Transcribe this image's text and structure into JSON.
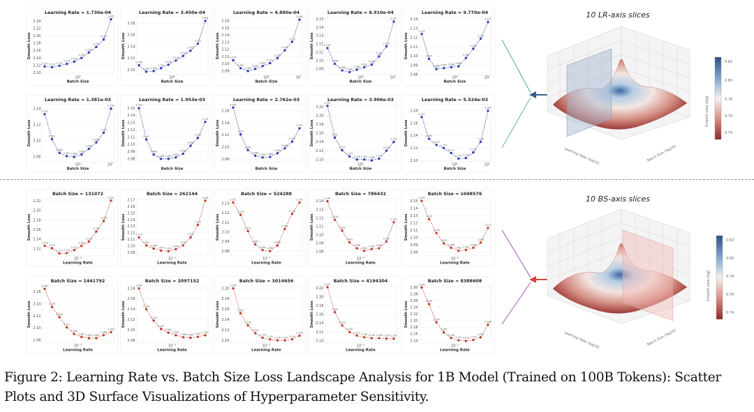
{
  "lr_section": {
    "title": "10 LR-axis slices",
    "xlabel": "Batch Size",
    "ylabel": "Smooth Loss",
    "color": "#2f3bb5"
  },
  "bs_section": {
    "title": "10 BS-axis slices",
    "xlabel": "Learning Rate",
    "ylabel": "Smooth Loss",
    "color": "#c43a2a"
  },
  "surface": {
    "axis_lr": "Learning Rate (log10)",
    "axis_bs": "Batch Size (log10)",
    "colorbar_label": "Smooth Loss (log)",
    "colorbar_ticks": [
      "0.82",
      "0.80",
      "0.78",
      "0.76",
      "0.74"
    ],
    "colormap": [
      "#2f4f88",
      "#8fb3d6",
      "#f5f0ee",
      "#d79083",
      "#8f2a2a"
    ],
    "lr_arrow_color": "#3a5b8c",
    "bs_arrow_color": "#d2473a"
  },
  "divider_style": "dashed",
  "caption": {
    "line1": "Figure 2: Learning Rate vs. Batch Size Loss Landscape Analysis for 1B Model (Trained on 100B Tokens): Scatter",
    "line2": "Plots and 3D Surface Visualizations of Hyperparameter Sensitivity."
  },
  "chart_data": [
    {
      "type": "line",
      "group": "lr",
      "title": "Learning Rate = 1.730e-04",
      "xlabel": "Batch Size",
      "ylabel": "Smooth Loss",
      "x_scale": "log",
      "y_ticks": [
        "2.10",
        "2.12",
        "2.14",
        "2.16",
        "2.18",
        "2.20",
        "2.22",
        "2.24"
      ],
      "x_ticks": [
        "10⁶"
      ],
      "ylim": [
        2.095,
        2.25
      ],
      "values": [
        2.117,
        2.115,
        2.119,
        2.124,
        2.13,
        2.14,
        2.155,
        2.17,
        2.19,
        2.245
      ]
    },
    {
      "type": "line",
      "group": "lr",
      "title": "Learning Rate = 3.450e-04",
      "xlabel": "Batch Size",
      "ylabel": "Smooth Loss",
      "x_scale": "log",
      "y_ticks": [
        "2.10",
        "2.12",
        "2.14",
        "2.16",
        "2.18"
      ],
      "x_ticks": [
        "10⁶"
      ],
      "ylim": [
        2.092,
        2.19
      ],
      "values": [
        2.108,
        2.097,
        2.098,
        2.103,
        2.109,
        2.116,
        2.124,
        2.133,
        2.145,
        2.184
      ]
    },
    {
      "type": "line",
      "group": "lr",
      "title": "Learning Rate = 4.880e-04",
      "xlabel": "Batch Size",
      "ylabel": "Smooth Loss",
      "x_scale": "log",
      "y_ticks": [
        "2.09",
        "2.10",
        "2.11",
        "2.12",
        "2.13",
        "2.14",
        "2.15",
        "2.16"
      ],
      "x_ticks": [
        "10⁶",
        "10⁷"
      ],
      "ylim": [
        2.085,
        2.165
      ],
      "values": [
        2.105,
        2.094,
        2.09,
        2.093,
        2.097,
        2.101,
        2.108,
        2.119,
        2.131,
        2.162
      ]
    },
    {
      "type": "line",
      "group": "lr",
      "title": "Learning Rate = 6.910e-04",
      "xlabel": "Batch Size",
      "ylabel": "Smooth Loss",
      "x_scale": "log",
      "y_ticks": [
        "2.09",
        "2.10",
        "2.11",
        "2.12",
        "2.13",
        "2.14",
        "2.15"
      ],
      "x_ticks": [
        "10⁶",
        "10⁷"
      ],
      "ylim": [
        2.083,
        2.152
      ],
      "values": [
        2.115,
        2.096,
        2.088,
        2.086,
        2.089,
        2.092,
        2.095,
        2.105,
        2.117,
        2.147
      ]
    },
    {
      "type": "line",
      "group": "lr",
      "title": "Learning Rate = 9.770e-04",
      "xlabel": "Batch Size",
      "ylabel": "Smooth Loss",
      "x_scale": "log",
      "y_ticks": [
        "2.08",
        "2.09",
        "2.10",
        "2.11",
        "2.12",
        "2.13",
        "2.14"
      ],
      "x_ticks": [
        "10⁶",
        "10⁷"
      ],
      "ylim": [
        2.08,
        2.142
      ],
      "values": [
        2.124,
        2.097,
        2.086,
        2.087,
        2.088,
        2.089,
        2.098,
        2.108,
        2.119,
        2.137
      ]
    },
    {
      "type": "line",
      "group": "lr",
      "title": "Learning Rate = 1.381e-03",
      "xlabel": "Batch Size",
      "ylabel": "Smooth Loss",
      "x_scale": "log",
      "y_ticks": [
        "2.08",
        "2.10",
        "2.12",
        "2.14"
      ],
      "x_ticks": [
        "10⁶",
        "10⁷"
      ],
      "ylim": [
        2.074,
        2.145
      ],
      "values": [
        2.133,
        2.102,
        2.085,
        2.081,
        2.08,
        2.083,
        2.09,
        2.098,
        2.11,
        2.14
      ]
    },
    {
      "type": "line",
      "group": "lr",
      "title": "Learning Rate = 1.953e-03",
      "xlabel": "Batch Size",
      "ylabel": "Smooth Loss",
      "x_scale": "log",
      "y_ticks": [
        "2.08",
        "2.09",
        "2.10",
        "2.11",
        "2.12",
        "2.13",
        "2.14",
        "2.15"
      ],
      "x_ticks": [],
      "ylim": [
        2.076,
        2.155
      ],
      "values": [
        2.15,
        2.107,
        2.086,
        2.08,
        2.08,
        2.082,
        2.087,
        2.098,
        2.109,
        2.131
      ]
    },
    {
      "type": "line",
      "group": "lr",
      "title": "Learning Rate = 2.762e-03",
      "xlabel": "Batch Size",
      "ylabel": "Smooth Loss",
      "x_scale": "log",
      "y_ticks": [
        "2.08",
        "2.10",
        "2.12",
        "2.14",
        "2.16"
      ],
      "x_ticks": [],
      "ylim": [
        2.076,
        2.17
      ],
      "values": [
        2.165,
        2.121,
        2.095,
        2.086,
        2.083,
        2.084,
        2.09,
        2.098,
        2.109,
        2.131
      ]
    },
    {
      "type": "line",
      "group": "lr",
      "title": "Learning Rate = 3.906e-03",
      "xlabel": "Batch Size",
      "ylabel": "Smooth Loss",
      "x_scale": "log",
      "y_ticks": [
        "2.10",
        "2.12",
        "2.14",
        "2.16",
        "2.18",
        "2.20",
        "2.22"
      ],
      "x_ticks": [
        "10⁶"
      ],
      "ylim": [
        2.095,
        2.225
      ],
      "values": [
        2.222,
        2.15,
        2.121,
        2.107,
        2.1,
        2.1,
        2.098,
        2.102,
        2.12,
        2.14
      ]
    },
    {
      "type": "line",
      "group": "lr",
      "title": "Learning Rate = 5.524e-03",
      "xlabel": "Batch Size",
      "ylabel": "Smooth Loss",
      "x_scale": "log",
      "y_ticks": [
        "2.10",
        "2.12",
        "2.14",
        "2.16",
        "2.18"
      ],
      "x_ticks": [
        "10⁶",
        "10⁷"
      ],
      "ylim": [
        2.098,
        2.19
      ],
      "values": [
        2.17,
        2.135,
        2.125,
        2.12,
        2.112,
        2.103,
        2.104,
        2.113,
        2.13,
        2.18
      ]
    },
    {
      "type": "line",
      "group": "bs",
      "title": "Batch Size = 131072",
      "xlabel": "Learning Rate",
      "ylabel": "Smooth Loss",
      "x_scale": "log",
      "y_ticks": [
        "2.12",
        "2.14",
        "2.16",
        "2.18",
        "2.20",
        "2.22"
      ],
      "x_ticks": [
        "10⁻³"
      ],
      "ylim": [
        2.105,
        2.225
      ],
      "values": [
        2.126,
        2.121,
        2.11,
        2.111,
        2.117,
        2.126,
        2.135,
        2.156,
        2.178,
        2.221
      ]
    },
    {
      "type": "line",
      "group": "bs",
      "title": "Batch Size = 262144",
      "xlabel": "Learning Rate",
      "ylabel": "Smooth Loss",
      "x_scale": "log",
      "y_ticks": [
        "2.09",
        "2.10",
        "2.11",
        "2.12",
        "2.13",
        "2.14",
        "2.15",
        "2.16",
        "2.17"
      ],
      "x_ticks": [
        "10⁻³"
      ],
      "ylim": [
        2.085,
        2.172
      ],
      "values": [
        2.113,
        2.101,
        2.096,
        2.093,
        2.092,
        2.095,
        2.101,
        2.113,
        2.132,
        2.169
      ]
    },
    {
      "type": "line",
      "group": "bs",
      "title": "Batch Size = 524288",
      "xlabel": "Learning Rate",
      "ylabel": "Smooth Loss",
      "x_scale": "log",
      "y_ticks": [
        "2.08",
        "2.09",
        "2.10",
        "2.11",
        "2.12",
        "2.13"
      ],
      "x_ticks": [
        "10⁻³"
      ],
      "ylim": [
        2.075,
        2.135
      ],
      "values": [
        2.131,
        2.118,
        2.101,
        2.087,
        2.081,
        2.08,
        2.086,
        2.103,
        2.119,
        2.131
      ]
    },
    {
      "type": "line",
      "group": "bs",
      "title": "Batch Size = 786432",
      "xlabel": "Learning Rate",
      "ylabel": "Smooth Loss",
      "x_scale": "log",
      "y_ticks": [
        "2.08",
        "2.09",
        "2.10",
        "2.11",
        "2.12",
        "2.13",
        "2.14"
      ],
      "x_ticks": [
        "10⁻³"
      ],
      "ylim": [
        2.075,
        2.143
      ],
      "values": [
        2.14,
        2.118,
        2.105,
        2.091,
        2.084,
        2.081,
        2.083,
        2.084,
        2.092,
        2.115
      ]
    },
    {
      "type": "line",
      "group": "bs",
      "title": "Batch Size = 1048576",
      "xlabel": "Learning Rate",
      "ylabel": "Smooth Loss",
      "x_scale": "log",
      "y_ticks": [
        "2.08",
        "2.09",
        "2.10",
        "2.11",
        "2.12",
        "2.13",
        "2.14",
        "2.15"
      ],
      "x_ticks": [
        "10⁻³"
      ],
      "ylim": [
        2.075,
        2.153
      ],
      "values": [
        2.15,
        2.125,
        2.106,
        2.092,
        2.086,
        2.082,
        2.083,
        2.086,
        2.093,
        2.113
      ]
    },
    {
      "type": "line",
      "group": "bs",
      "title": "Batch Size = 1441792",
      "xlabel": "Learning Rate",
      "ylabel": "Smooth Loss",
      "x_scale": "log",
      "y_ticks": [
        "2.08",
        "2.10",
        "2.12",
        "2.14",
        "2.16"
      ],
      "x_ticks": [
        "10⁻³"
      ],
      "ylim": [
        2.075,
        2.17
      ],
      "values": [
        2.165,
        2.135,
        2.118,
        2.101,
        2.09,
        2.085,
        2.083,
        2.083,
        2.088,
        2.093
      ]
    },
    {
      "type": "line",
      "group": "bs",
      "title": "Batch Size = 2097152",
      "xlabel": "Learning Rate",
      "ylabel": "Smooth Loss",
      "x_scale": "log",
      "y_ticks": [
        "2.08",
        "2.10",
        "2.12",
        "2.14",
        "2.16",
        "2.18"
      ],
      "x_ticks": [
        "10⁻³"
      ],
      "ylim": [
        2.075,
        2.185
      ],
      "values": [
        2.18,
        2.14,
        2.118,
        2.102,
        2.095,
        2.09,
        2.086,
        2.085,
        2.087,
        2.09
      ]
    },
    {
      "type": "line",
      "group": "bs",
      "title": "Batch Size = 3014656",
      "xlabel": "Learning Rate",
      "ylabel": "Smooth Loss",
      "x_scale": "log",
      "y_ticks": [
        "2.10",
        "2.12",
        "2.14",
        "2.16",
        "2.18",
        "2.20"
      ],
      "x_ticks": [
        "10⁻³"
      ],
      "ylim": [
        2.095,
        2.205
      ],
      "values": [
        2.2,
        2.152,
        2.129,
        2.114,
        2.105,
        2.102,
        2.1,
        2.1,
        2.102,
        2.109
      ]
    },
    {
      "type": "line",
      "group": "bs",
      "title": "Batch Size = 4194304",
      "xlabel": "Learning Rate",
      "ylabel": "Smooth Loss",
      "x_scale": "log",
      "y_ticks": [
        "2.10",
        "2.12",
        "2.14",
        "2.16",
        "2.18",
        "2.20",
        "2.22"
      ],
      "x_ticks": [
        "10⁻³"
      ],
      "ylim": [
        2.095,
        2.225
      ],
      "values": [
        2.222,
        2.165,
        2.135,
        2.12,
        2.112,
        2.108,
        2.106,
        2.106,
        2.105,
        2.105
      ]
    },
    {
      "type": "line",
      "group": "bs",
      "title": "Batch Size = 8388608",
      "xlabel": "Learning Rate",
      "ylabel": "Smooth Loss",
      "x_scale": "log",
      "y_ticks": [
        "2.14",
        "2.16",
        "2.18",
        "2.20",
        "2.22",
        "2.24",
        "2.26",
        "2.28",
        "2.30"
      ],
      "x_ticks": [
        "10⁻³"
      ],
      "ylim": [
        2.133,
        2.305
      ],
      "values": [
        2.3,
        2.25,
        2.195,
        2.165,
        2.148,
        2.141,
        2.139,
        2.142,
        2.15,
        2.188
      ]
    }
  ]
}
